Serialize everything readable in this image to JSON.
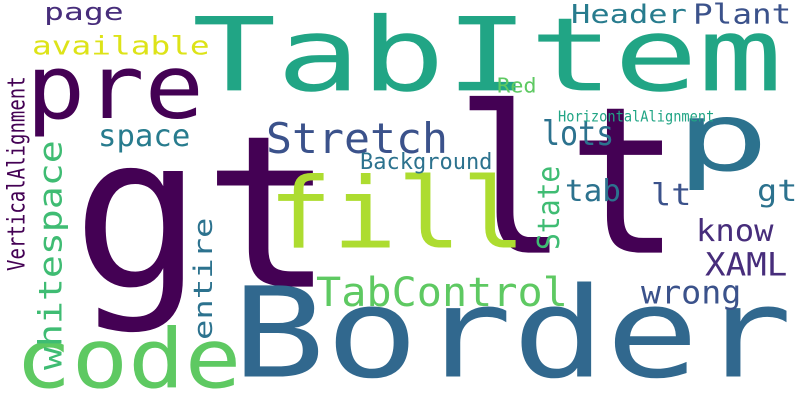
{
  "words": [
    {
      "text": "gt",
      "color": "#440154",
      "vertical": false
    },
    {
      "text": "lt",
      "color": "#440154",
      "vertical": false
    },
    {
      "text": "Border",
      "color": "#31688e",
      "vertical": false
    },
    {
      "text": "TabItem",
      "color": "#21a585",
      "vertical": false
    },
    {
      "text": "pre",
      "color": "#440154",
      "vertical": false
    },
    {
      "text": "fill",
      "color": "#addc30",
      "vertical": false
    },
    {
      "text": "code",
      "color": "#5ec962",
      "vertical": false
    },
    {
      "text": "p",
      "color": "#2c728e",
      "vertical": false
    },
    {
      "text": "Stretch",
      "color": "#3b528b",
      "vertical": false
    },
    {
      "text": "TabControl",
      "color": "#5ec962",
      "vertical": false
    },
    {
      "text": "whitespace",
      "color": "#3fbc73",
      "vertical": true
    },
    {
      "text": "entire",
      "color": "#2c728e",
      "vertical": true
    },
    {
      "text": "XAML",
      "color": "#472d7b",
      "vertical": false
    },
    {
      "text": "wrong",
      "color": "#3b528b",
      "vertical": false
    },
    {
      "text": "lots",
      "color": "#2c728e",
      "vertical": false
    },
    {
      "text": "available",
      "color": "#dde318",
      "vertical": false
    },
    {
      "text": "Header",
      "color": "#287c8e",
      "vertical": false
    },
    {
      "text": "Plant",
      "color": "#3b528b",
      "vertical": false
    },
    {
      "text": "page",
      "color": "#472d7b",
      "vertical": false
    },
    {
      "text": "space",
      "color": "#287c8e",
      "vertical": false
    },
    {
      "text": "know",
      "color": "#472d7b",
      "vertical": false
    },
    {
      "text": "tab",
      "color": "#2c728e",
      "vertical": false
    },
    {
      "text": "lt",
      "color": "#3b528b",
      "vertical": false
    },
    {
      "text": "gt",
      "color": "#2c728e",
      "vertical": false
    },
    {
      "text": "State",
      "color": "#3fbc73",
      "vertical": true
    },
    {
      "text": "Background",
      "color": "#2c728e",
      "vertical": false
    },
    {
      "text": "VerticalAlignment",
      "color": "#440154",
      "vertical": true
    },
    {
      "text": "Red",
      "color": "#5ec962",
      "vertical": false
    },
    {
      "text": "HorizontalAlignment",
      "color": "#21a585",
      "vertical": false
    }
  ]
}
